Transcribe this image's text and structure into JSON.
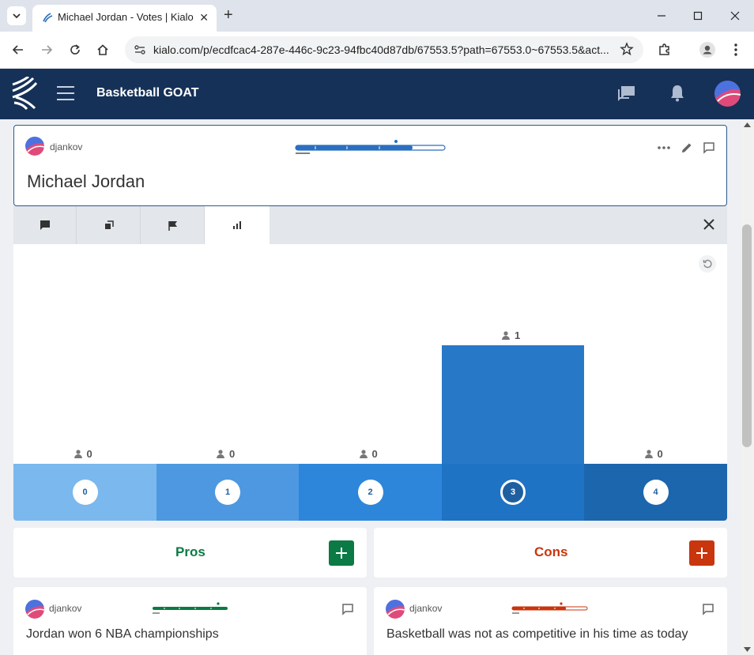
{
  "browser": {
    "tab_title": "Michael Jordan - Votes | Kialo",
    "url": "kialo.com/p/ecdfcac4-287e-446c-9c23-94fbc40d87db/67553.5?path=67553.0~67553.5&act..."
  },
  "app": {
    "title": "Basketball GOAT",
    "accent": "#163157"
  },
  "claim": {
    "author": "djankov",
    "text": "Michael Jordan"
  },
  "chart_data": {
    "type": "bar",
    "categories": [
      "0",
      "1",
      "2",
      "3",
      "4"
    ],
    "values": [
      0,
      0,
      0,
      1,
      0
    ],
    "selected_category": "3",
    "ylim": [
      0,
      1
    ]
  },
  "columns": {
    "pros": {
      "label": "Pros",
      "color": "#0b7a44"
    },
    "cons": {
      "label": "Cons",
      "color": "#c9350d"
    }
  },
  "cards": [
    {
      "author": "djankov",
      "text": "Jordan won 6 NBA championships"
    },
    {
      "author": "djankov",
      "text": "Basketball was not as competitive in his time as today"
    }
  ]
}
